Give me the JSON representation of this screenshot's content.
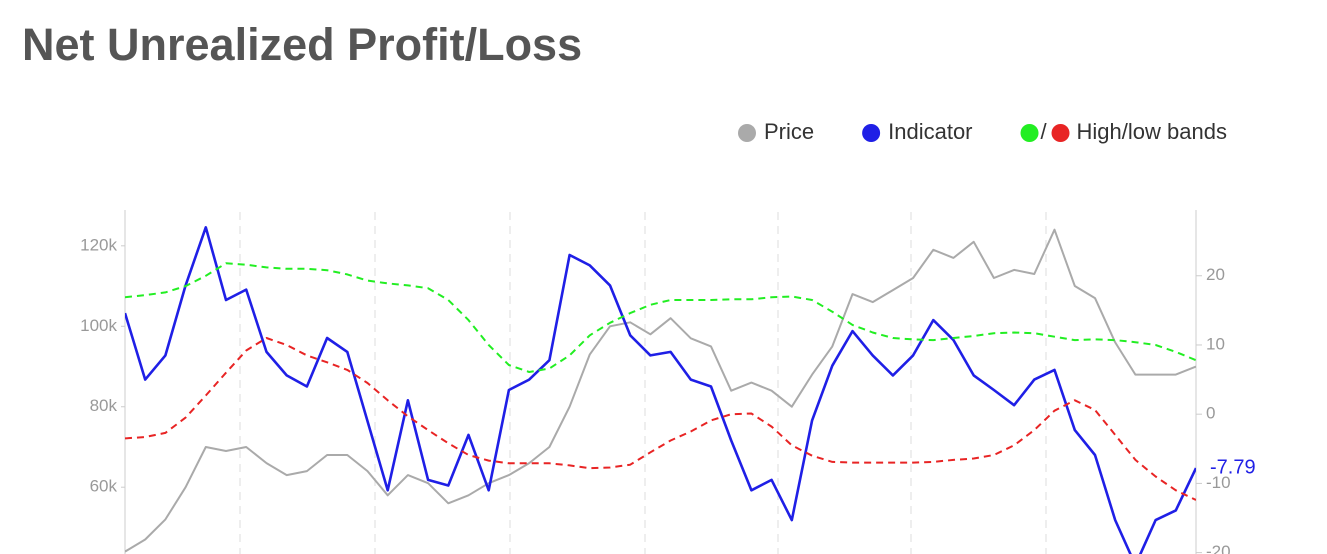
{
  "chart_data": {
    "type": "line",
    "title": "Net Unrealized Profit/Loss",
    "categories": [
      null,
      null,
      null,
      null,
      null,
      null,
      null,
      null,
      null,
      null,
      null,
      null,
      null,
      null,
      null,
      null,
      null,
      null,
      null,
      null,
      null,
      null,
      null,
      null,
      null,
      null,
      null,
      null,
      null,
      null,
      null,
      null,
      null,
      null,
      null,
      null,
      null,
      null,
      null,
      null,
      null,
      null,
      null,
      null,
      null,
      null,
      null,
      null,
      null,
      null,
      null,
      null,
      null,
      null
    ],
    "series": [
      {
        "name": "Price",
        "color": "#aaaaaa",
        "axis": "y",
        "values": [
          44000,
          47000,
          52000,
          60000,
          70000,
          69000,
          70000,
          66000,
          63000,
          64000,
          68000,
          68000,
          64000,
          58000,
          63000,
          61000,
          56000,
          58000,
          61000,
          63000,
          66000,
          70000,
          80000,
          93000,
          100000,
          101000,
          98000,
          102000,
          97000,
          95000,
          84000,
          86000,
          84000,
          80000,
          88000,
          95000,
          108000,
          106000,
          109000,
          112000,
          119000,
          117000,
          121000,
          112000,
          114000,
          113000,
          124000,
          110000,
          107000,
          96000,
          88000,
          88000,
          88000,
          90000
        ]
      },
      {
        "name": "Indicator",
        "color": "#1f1fe6",
        "axis": "y2",
        "values": [
          14.6,
          5,
          8.5,
          18.6,
          27,
          16.5,
          18,
          9,
          5.6,
          4,
          11,
          9,
          -1,
          -11,
          2,
          -9.5,
          -10.3,
          -3,
          -11,
          3.5,
          5,
          7.8,
          23,
          21.5,
          18.6,
          11.4,
          8.5,
          9,
          5,
          4,
          -3.8,
          -11,
          -9.5,
          -15.3,
          -0.9,
          7,
          12,
          8.5,
          5.6,
          8.5,
          13.6,
          10.7,
          5.6,
          3.5,
          1.3,
          5,
          6.4,
          -2.3,
          -5.9,
          -15.3,
          -21.8,
          -15.3,
          -13.9,
          -7.79
        ]
      },
      {
        "name": "High/low bands",
        "color": "#22ee22",
        "axis": "y2",
        "dashed": true,
        "values": [
          16.9,
          17.2,
          17.6,
          18.5,
          20,
          21.8,
          21.6,
          21.2,
          21,
          21,
          20.8,
          20.2,
          19.3,
          18.9,
          18.6,
          18.2,
          16.5,
          13.6,
          10,
          7.1,
          6.1,
          6.6,
          8.5,
          11.4,
          13.2,
          14.6,
          15.8,
          16.5,
          16.5,
          16.5,
          16.6,
          16.6,
          16.9,
          17,
          16.5,
          14.8,
          12.9,
          11.8,
          11,
          10.8,
          10.7,
          11,
          11.3,
          11.7,
          11.8,
          11.7,
          11.2,
          10.7,
          10.8,
          10.7,
          10.4,
          10,
          9,
          7.8
        ]
      },
      {
        "color": "#e82424",
        "axis": "y2",
        "dashed": true,
        "values": [
          -3.5,
          -3.3,
          -2.7,
          -0.5,
          2.7,
          6,
          9.2,
          11,
          10,
          8.5,
          7.5,
          6.4,
          4.5,
          2,
          -0.3,
          -2.3,
          -4.2,
          -5.9,
          -6.7,
          -7.1,
          -7.1,
          -7.1,
          -7.4,
          -7.8,
          -7.7,
          -7.3,
          -5.5,
          -3.8,
          -2.5,
          -0.9,
          0,
          0.1,
          -1.8,
          -4.5,
          -6,
          -6.9,
          -7,
          -7,
          -7,
          -7,
          -6.9,
          -6.6,
          -6.4,
          -5.9,
          -4.5,
          -2.3,
          0.5,
          2,
          0.6,
          -3,
          -6.6,
          -9,
          -11,
          -12.4
        ]
      }
    ],
    "legend_separator": "/",
    "ylim": [
      43400,
      128900
    ],
    "yticks": [
      {
        "value": 60000,
        "label": "60k"
      },
      {
        "value": 80000,
        "label": "80k"
      },
      {
        "value": 100000,
        "label": "100k"
      },
      {
        "value": 120000,
        "label": "120k"
      }
    ],
    "y2lim": [
      -20.2,
      29.5
    ],
    "y2ticks": [
      -20,
      -10,
      0,
      10,
      20
    ],
    "last_value_series": 1
  }
}
